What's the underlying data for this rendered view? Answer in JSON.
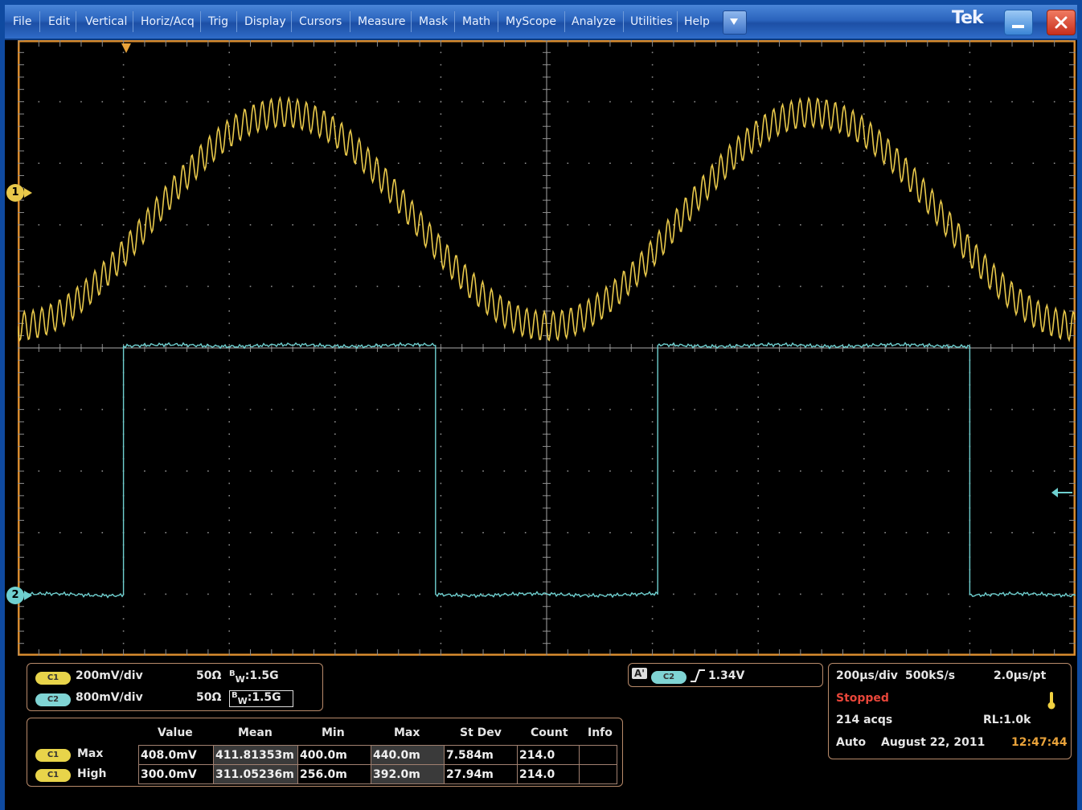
{
  "menu": {
    "items": [
      "File",
      "Edit",
      "Vertical",
      "Horiz/Acq",
      "Trig",
      "Display",
      "Cursors",
      "Measure",
      "Mask",
      "Math",
      "MyScope",
      "Analyze",
      "Utilities",
      "Help"
    ],
    "logo": "Tek"
  },
  "channels": {
    "ch1_marker": "1",
    "ch2_marker": "2",
    "ch1": {
      "tag": "C1",
      "scale": "200mV/div",
      "impedance": "50Ω",
      "bw_prefix": "B",
      "bw_sub": "W",
      "bw_value": ":1.5G"
    },
    "ch2": {
      "tag": "C2",
      "scale": "800mV/div",
      "impedance": "50Ω",
      "bw_prefix": "B",
      "bw_sub": "W",
      "bw_value": ":1.5G"
    }
  },
  "trigger": {
    "label": "A'",
    "source": "C2",
    "level": "1.34V"
  },
  "acquisition": {
    "timebase": "200µs/div",
    "sample_rate": "500kS/s",
    "resolution": "2.0µs/pt",
    "state": "Stopped",
    "acqs": "214 acqs",
    "record_length": "RL:1.0k",
    "mode": "Auto",
    "date": "August 22, 2011",
    "time": "12:47:44"
  },
  "measurements": {
    "headers": [
      "Value",
      "Mean",
      "Min",
      "Max",
      "St Dev",
      "Count",
      "Info"
    ],
    "rows": [
      {
        "tag": "C1",
        "name": "Max",
        "value": "408.0mV",
        "mean": "411.81353m",
        "min": "400.0m",
        "max": "440.0m",
        "stdev": "7.584m",
        "count": "214.0",
        "info": ""
      },
      {
        "tag": "C1",
        "name": "High",
        "value": "300.0mV",
        "mean": "311.05236m",
        "min": "256.0m",
        "max": "392.0m",
        "stdev": "27.94m",
        "count": "214.0",
        "info": ""
      }
    ]
  },
  "colors": {
    "ch1": "#e8c84a",
    "ch2": "#6fd0d0",
    "grid": "#8a8a8a",
    "frame": "#d68a2e"
  },
  "waveform": {
    "ch1": {
      "shape": "sine with ripple",
      "period_divs": 5.0,
      "ripple_cycles_per_div": 12
    },
    "ch2": {
      "shape": "square",
      "transitions_divs": [
        1.0,
        3.95,
        6.05,
        9.0
      ]
    }
  }
}
